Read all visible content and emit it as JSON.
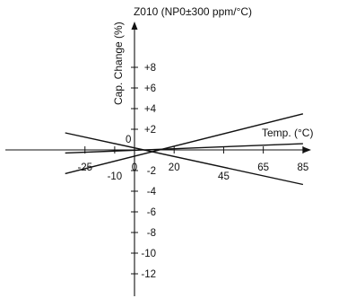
{
  "chart_data": {
    "type": "line",
    "title": "Z010 (NP0±300 ppm/°C)",
    "xlabel": "Temp. (°C)",
    "ylabel": "Cap. Change (%)",
    "origin_label": "0",
    "x_ticks": [
      {
        "value": -25,
        "label": "-25",
        "row": "upper"
      },
      {
        "value": -10,
        "label": "-10",
        "row": "lower"
      },
      {
        "value": 0,
        "label": "0",
        "row": "upper"
      },
      {
        "value": 20,
        "label": "20",
        "row": "upper"
      },
      {
        "value": 45,
        "label": "45",
        "row": "lower"
      },
      {
        "value": 65,
        "label": "65",
        "row": "upper"
      },
      {
        "value": 85,
        "label": "85",
        "row": "upper"
      }
    ],
    "y_ticks": [
      {
        "value": 8,
        "label": "+8"
      },
      {
        "value": 6,
        "label": "+6"
      },
      {
        "value": 4,
        "label": "+4"
      },
      {
        "value": 2,
        "label": "+2"
      },
      {
        "value": -2,
        "label": "-2"
      },
      {
        "value": -4,
        "label": "-4"
      },
      {
        "value": -6,
        "label": "-6"
      },
      {
        "value": -8,
        "label": "-8"
      },
      {
        "value": -10,
        "label": "-10"
      },
      {
        "value": -12,
        "label": "-12"
      }
    ],
    "xlim": [
      -35,
      88
    ],
    "ylim": [
      -14,
      10.5
    ],
    "series": [
      {
        "x": [
          -35,
          85
        ],
        "y": [
          1.65,
          -3.35
        ]
      },
      {
        "x": [
          -35,
          85
        ],
        "y": [
          -2.3,
          3.5
        ]
      },
      {
        "x": [
          -35,
          85
        ],
        "y": [
          -0.3,
          0.6
        ]
      }
    ],
    "grid": false,
    "colors": {
      "line": "#111111",
      "axis": "#111111"
    }
  }
}
